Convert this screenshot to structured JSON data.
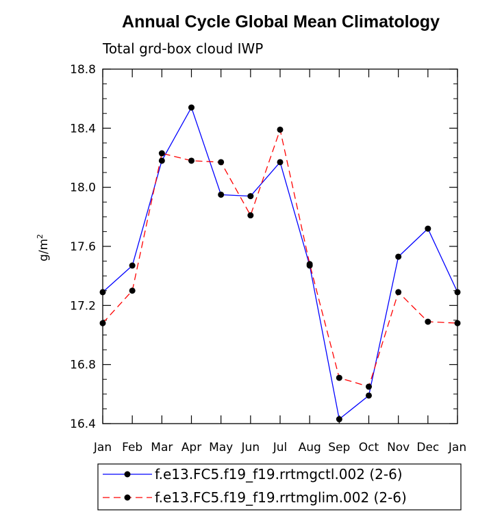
{
  "chart_data": {
    "type": "line",
    "title": "Annual Cycle Global Mean Climatology",
    "subtitle": "Total grd-box cloud IWP",
    "ylabel": "g/m",
    "ylabel_sup": "2",
    "xlabel": "",
    "ylim": [
      16.4,
      18.8
    ],
    "yticks": [
      "16.4",
      "16.8",
      "17.2",
      "17.6",
      "18.0",
      "18.4",
      "18.8"
    ],
    "categories": [
      "Jan",
      "Feb",
      "Mar",
      "Apr",
      "May",
      "Jun",
      "Jul",
      "Aug",
      "Sep",
      "Oct",
      "Nov",
      "Dec",
      "Jan"
    ],
    "series": [
      {
        "name": "f.e13.FC5.f19_f19.rrtmgctl.002 (2-6)",
        "color": "#0000ff",
        "dash": "solid",
        "values": [
          17.29,
          17.47,
          18.18,
          18.54,
          17.95,
          17.94,
          18.17,
          17.47,
          16.43,
          16.59,
          17.53,
          17.72,
          17.29
        ]
      },
      {
        "name": "f.e13.FC5.f19_f19.rrtmglim.002 (2-6)",
        "color": "#ff0000",
        "dash": "dashed",
        "values": [
          17.08,
          17.3,
          18.23,
          18.18,
          18.17,
          17.81,
          18.39,
          17.48,
          16.71,
          16.65,
          17.29,
          17.09,
          17.08
        ]
      }
    ]
  }
}
